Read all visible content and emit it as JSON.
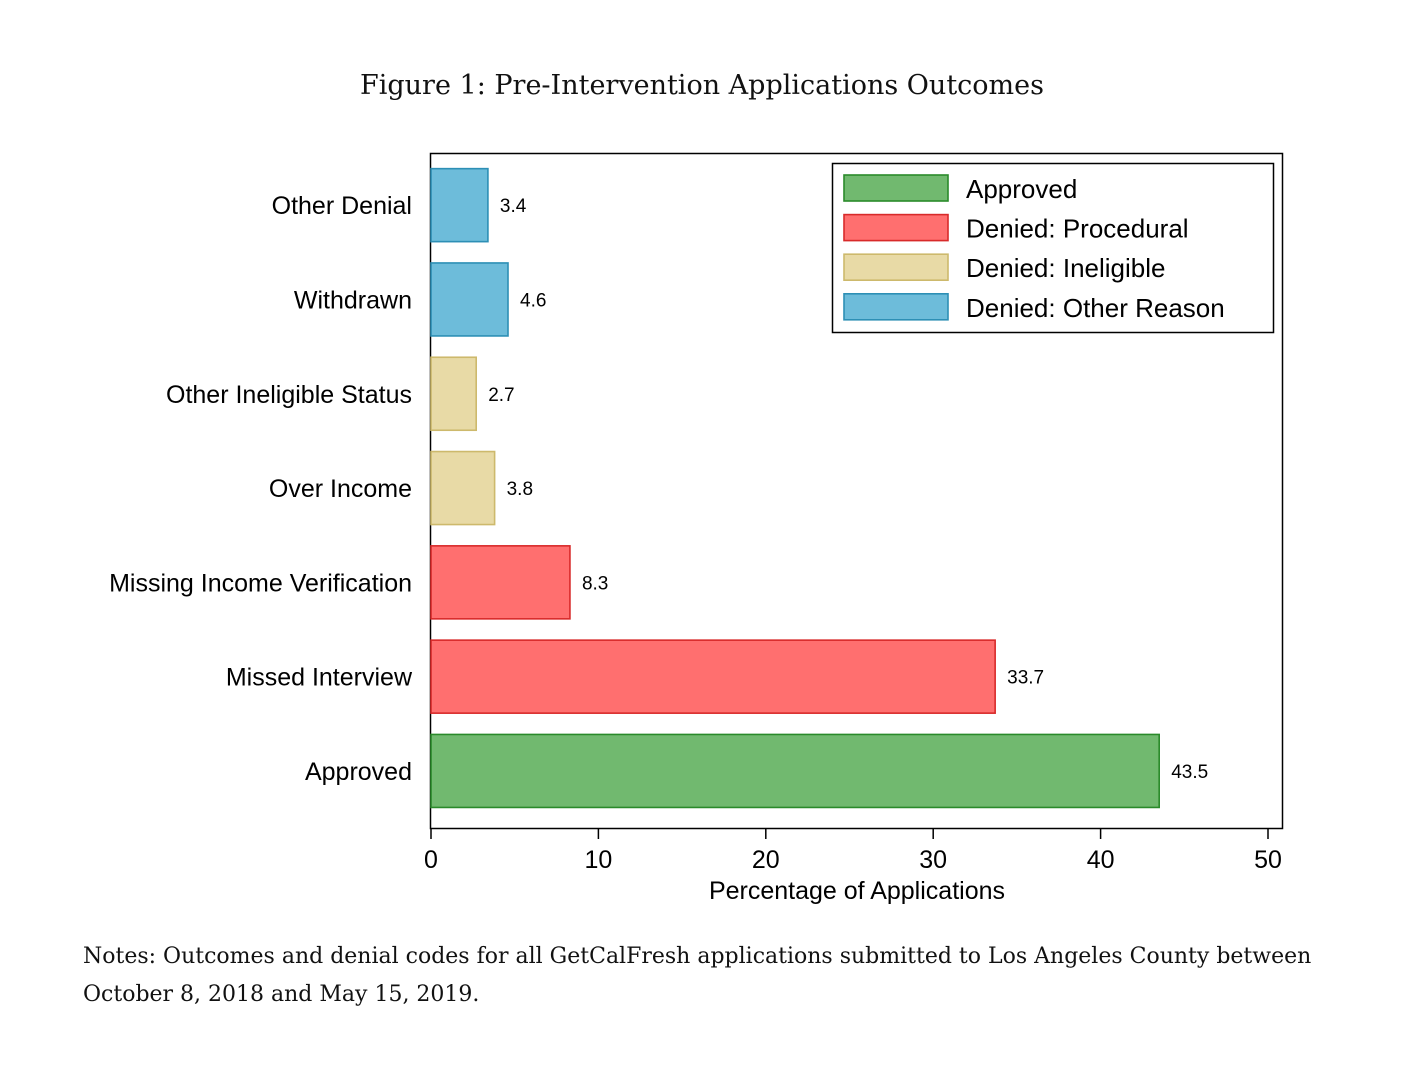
{
  "figure": {
    "title": "Figure 1: Pre-Intervention Applications Outcomes",
    "notes": "Notes: Outcomes and denial codes for all GetCalFresh applications submitted to Los Angeles County between October 8, 2018 and May 15, 2019."
  },
  "chart_data": {
    "type": "bar",
    "orientation": "horizontal",
    "title": "Figure 1: Pre-Intervention Applications Outcomes",
    "xlabel": "Percentage of Applications",
    "ylabel": "",
    "xlim": [
      0,
      50
    ],
    "xticks": [
      0,
      10,
      20,
      30,
      40,
      50
    ],
    "grid": false,
    "legend_position": "top-right",
    "categories": [
      "Other Denial",
      "Withdrawn",
      "Other Ineligible Status",
      "Over Income",
      "Missing Income Verification",
      "Missed Interview",
      "Approved"
    ],
    "values": [
      3.4,
      4.6,
      2.7,
      3.8,
      8.3,
      33.7,
      43.5
    ],
    "value_labels": [
      "3.4",
      "4.6",
      "2.7",
      "3.8",
      "8.3",
      "33.7",
      "43.5"
    ],
    "bar_groups": [
      "Denied: Other Reason",
      "Denied: Other Reason",
      "Denied: Ineligible",
      "Denied: Ineligible",
      "Denied: Procedural",
      "Denied: Procedural",
      "Approved"
    ],
    "legend": [
      {
        "name": "Approved",
        "fill": "#71b96f",
        "stroke": "#2a8a2a"
      },
      {
        "name": "Denied: Procedural",
        "fill": "#ff6f6f",
        "stroke": "#d82a2a"
      },
      {
        "name": "Denied: Ineligible",
        "fill": "#e8daa6",
        "stroke": "#cdb96c"
      },
      {
        "name": "Denied: Other Reason",
        "fill": "#6dbcda",
        "stroke": "#2d8fb5"
      }
    ]
  }
}
